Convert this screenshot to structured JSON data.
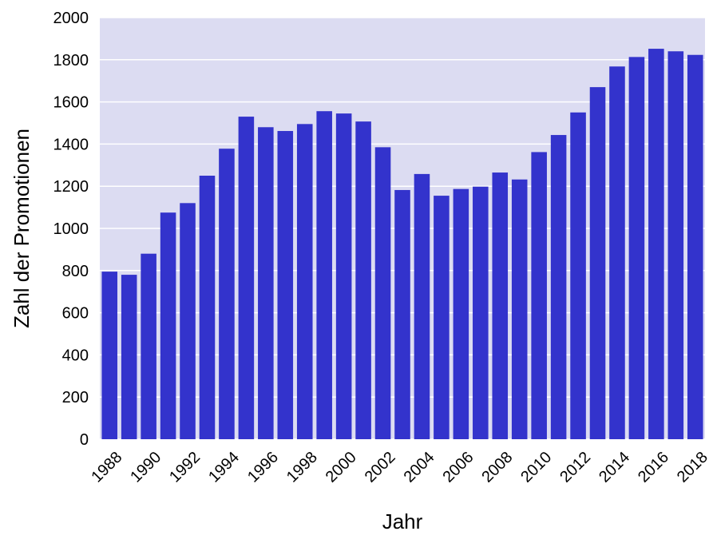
{
  "chart_data": {
    "type": "bar",
    "title": "",
    "xlabel": "Jahr",
    "ylabel": "Zahl der Promotionen",
    "ylim": [
      0,
      2000
    ],
    "yticks": [
      0,
      200,
      400,
      600,
      800,
      1000,
      1200,
      1400,
      1600,
      1800,
      2000
    ],
    "grid": true,
    "categories": [
      "1988",
      "1989",
      "1990",
      "1991",
      "1992",
      "1993",
      "1994",
      "1995",
      "1996",
      "1997",
      "1998",
      "1999",
      "2000",
      "2001",
      "2002",
      "2003",
      "2004",
      "2005",
      "2006",
      "2007",
      "2008",
      "2009",
      "2010",
      "2011",
      "2012",
      "2013",
      "2014",
      "2015",
      "2016",
      "2017",
      "2018"
    ],
    "tick_labels": [
      "1988",
      "1990",
      "1992",
      "1994",
      "1996",
      "1998",
      "2000",
      "2002",
      "2004",
      "2006",
      "2008",
      "2010",
      "2012",
      "2014",
      "2016",
      "2018"
    ],
    "values": [
      795,
      780,
      880,
      1075,
      1120,
      1250,
      1378,
      1530,
      1480,
      1462,
      1495,
      1556,
      1545,
      1507,
      1385,
      1182,
      1258,
      1155,
      1187,
      1198,
      1265,
      1232,
      1362,
      1443,
      1550,
      1670,
      1768,
      1813,
      1852,
      1840,
      1823
    ]
  },
  "colors": {
    "bar": "#3333cc",
    "plot_background": "#dcdcf2",
    "grid": "#ffffff"
  }
}
